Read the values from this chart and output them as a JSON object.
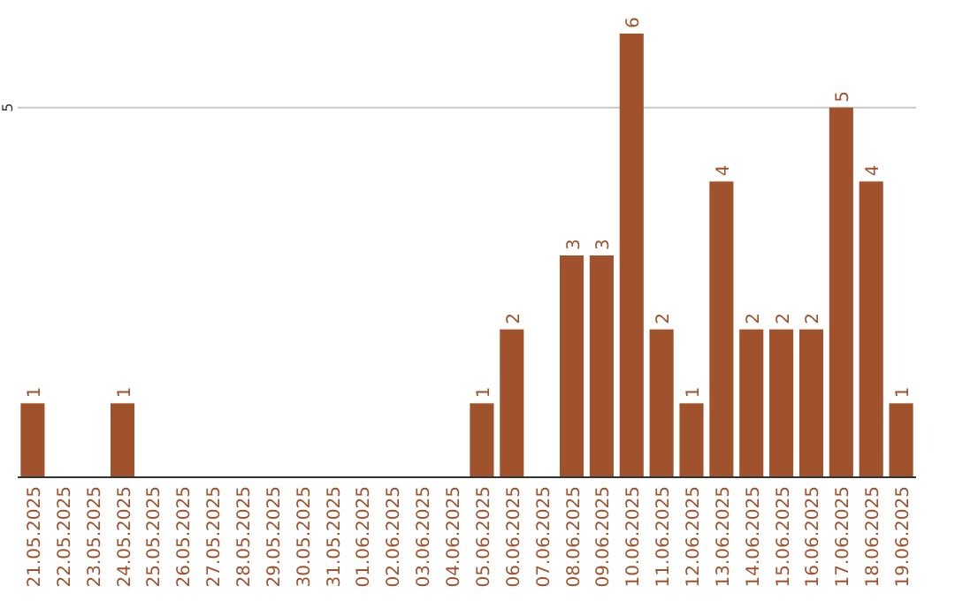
{
  "chart_data": {
    "type": "bar",
    "categories": [
      "21.05.2025",
      "22.05.2025",
      "23.05.2025",
      "24.05.2025",
      "25.05.2025",
      "26.05.2025",
      "27.05.2025",
      "28.05.2025",
      "29.05.2025",
      "30.05.2025",
      "31.05.2025",
      "01.06.2025",
      "02.06.2025",
      "03.06.2025",
      "04.06.2025",
      "05.06.2025",
      "06.06.2025",
      "07.06.2025",
      "08.06.2025",
      "09.06.2025",
      "10.06.2025",
      "11.06.2025",
      "12.06.2025",
      "13.06.2025",
      "14.06.2025",
      "15.06.2025",
      "16.06.2025",
      "17.06.2025",
      "18.06.2025",
      "19.06.2025"
    ],
    "values": [
      1,
      0,
      0,
      1,
      0,
      0,
      0,
      0,
      0,
      0,
      0,
      0,
      0,
      0,
      0,
      1,
      2,
      0,
      3,
      3,
      6,
      2,
      1,
      4,
      2,
      2,
      2,
      5,
      4,
      1
    ],
    "value_labels": [
      "1",
      null,
      null,
      "1",
      null,
      null,
      null,
      null,
      null,
      null,
      null,
      null,
      null,
      null,
      null,
      "1",
      "2",
      null,
      "3",
      "3",
      "6",
      "2",
      "1",
      "4",
      "2",
      "2",
      "2",
      "5",
      "4",
      "1"
    ],
    "color": "#a0522d",
    "ylim": [
      0,
      6
    ],
    "yticks": [
      5
    ],
    "grid": "y"
  }
}
